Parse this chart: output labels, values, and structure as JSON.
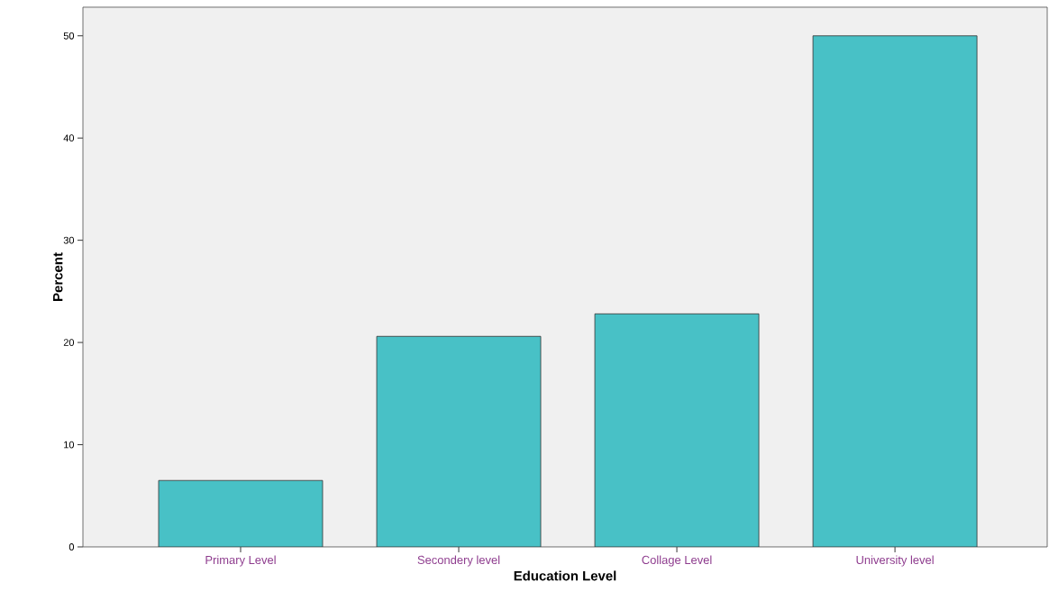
{
  "chart_data": {
    "type": "bar",
    "xlabel": "Education Level",
    "ylabel": "Percent",
    "categories": [
      "Primary Level",
      "Secondery level",
      "Collage Level",
      "University level"
    ],
    "values": [
      6.5,
      20.6,
      22.8,
      50.0
    ],
    "color": "#48c1c6",
    "ylim": [
      0,
      52.8
    ],
    "yticks": [
      0,
      10,
      20,
      30,
      40,
      50
    ],
    "grid": false
  }
}
